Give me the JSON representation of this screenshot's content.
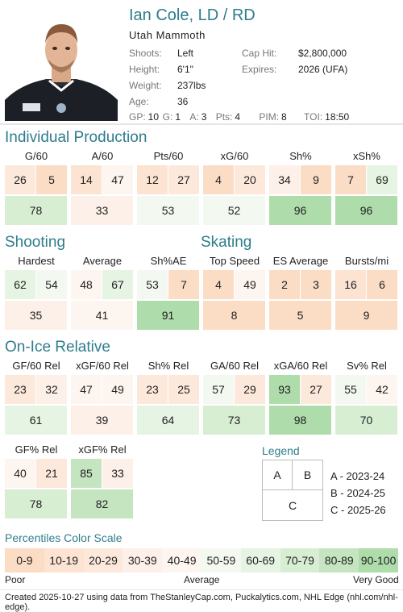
{
  "header": {
    "title": "Ian Cole, LD / RD",
    "team": "Utah Mammoth",
    "left": [
      {
        "label": "Shoots:",
        "value": "Left"
      },
      {
        "label": "Height:",
        "value": "6'1\""
      },
      {
        "label": "Weight:",
        "value": "237lbs"
      },
      {
        "label": "Age:",
        "value": "36"
      }
    ],
    "right": [
      {
        "label": "Cap Hit:",
        "value": "$2,800,000"
      },
      {
        "label": "Expires:",
        "value": "2026 (UFA)"
      }
    ],
    "stats_line": [
      {
        "label": "GP:",
        "value": "10"
      },
      {
        "label": "G:",
        "value": "1"
      },
      {
        "label": "A:",
        "value": "3"
      },
      {
        "label": "Pts:",
        "value": "4"
      },
      {
        "label": "PIM:",
        "value": "8"
      },
      {
        "label": "TOI:",
        "value": "18:50"
      }
    ]
  },
  "sections": {
    "individual": "Individual Production",
    "shooting": "Shooting",
    "skating": "Skating",
    "onice": "On-Ice Relative"
  },
  "groups": {
    "individual": [
      {
        "label": "G/60",
        "a": "26",
        "b": "5",
        "c": "78"
      },
      {
        "label": "A/60",
        "a": "14",
        "b": "47",
        "c": "33"
      },
      {
        "label": "Pts/60",
        "a": "12",
        "b": "27",
        "c": "53"
      },
      {
        "label": "xG/60",
        "a": "4",
        "b": "20",
        "c": "52"
      },
      {
        "label": "Sh%",
        "a": "34",
        "b": "9",
        "c": "96"
      },
      {
        "label": "xSh%",
        "a": "7",
        "b": "69",
        "c": "96"
      }
    ],
    "shooting": [
      {
        "label": "Hardest",
        "a": "62",
        "b": "54",
        "c": "35"
      },
      {
        "label": "Average",
        "a": "48",
        "b": "67",
        "c": "41"
      },
      {
        "label": "Sh%AE",
        "a": "53",
        "b": "7",
        "c": "91"
      }
    ],
    "skating": [
      {
        "label": "Top Speed",
        "a": "4",
        "b": "49",
        "c": "8"
      },
      {
        "label": "ES Average",
        "a": "2",
        "b": "3",
        "c": "5"
      },
      {
        "label": "Bursts/mi",
        "a": "16",
        "b": "6",
        "c": "9"
      }
    ],
    "onice": [
      {
        "label": "GF/60 Rel",
        "a": "23",
        "b": "32",
        "c": "61"
      },
      {
        "label": "xGF/60 Rel",
        "a": "47",
        "b": "49",
        "c": "39"
      },
      {
        "label": "Sh% Rel",
        "a": "23",
        "b": "25",
        "c": "64"
      },
      {
        "label": "GA/60 Rel",
        "a": "57",
        "b": "29",
        "c": "73"
      },
      {
        "label": "xGA/60 Rel",
        "a": "93",
        "b": "27",
        "c": "98"
      },
      {
        "label": "Sv% Rel",
        "a": "55",
        "b": "42",
        "c": "70"
      }
    ],
    "onice2": [
      {
        "label": "GF% Rel",
        "a": "40",
        "b": "21",
        "c": "78"
      },
      {
        "label": "xGF% Rel",
        "a": "85",
        "b": "33",
        "c": "82"
      }
    ]
  },
  "legend": {
    "title": "Legend",
    "a": "A",
    "b": "B",
    "c": "C",
    "lines": [
      "A - 2023-24",
      "B - 2024-25",
      "C - 2025-26"
    ]
  },
  "scale": {
    "title": "Percentiles Color Scale",
    "items": [
      "0-9",
      "10-19",
      "20-29",
      "30-39",
      "40-49",
      "50-59",
      "60-69",
      "70-79",
      "80-89",
      "90-100"
    ],
    "colors": [
      "#fbdcc5",
      "#fce3d2",
      "#fde9dc",
      "#fdf0e8",
      "#fdf5f0",
      "#f3f9f1",
      "#e6f4e3",
      "#d7eed3",
      "#c4e5bf",
      "#aedcab"
    ],
    "poor": "Poor",
    "average": "Average",
    "very_good": "Very Good"
  },
  "footer": "Created 2025-10-27 using data from TheStanleyCap.com, Puckalytics.com, NHL Edge (nhl.com/nhl-edge).",
  "colors": {
    "accent": "#2e7d8c"
  }
}
